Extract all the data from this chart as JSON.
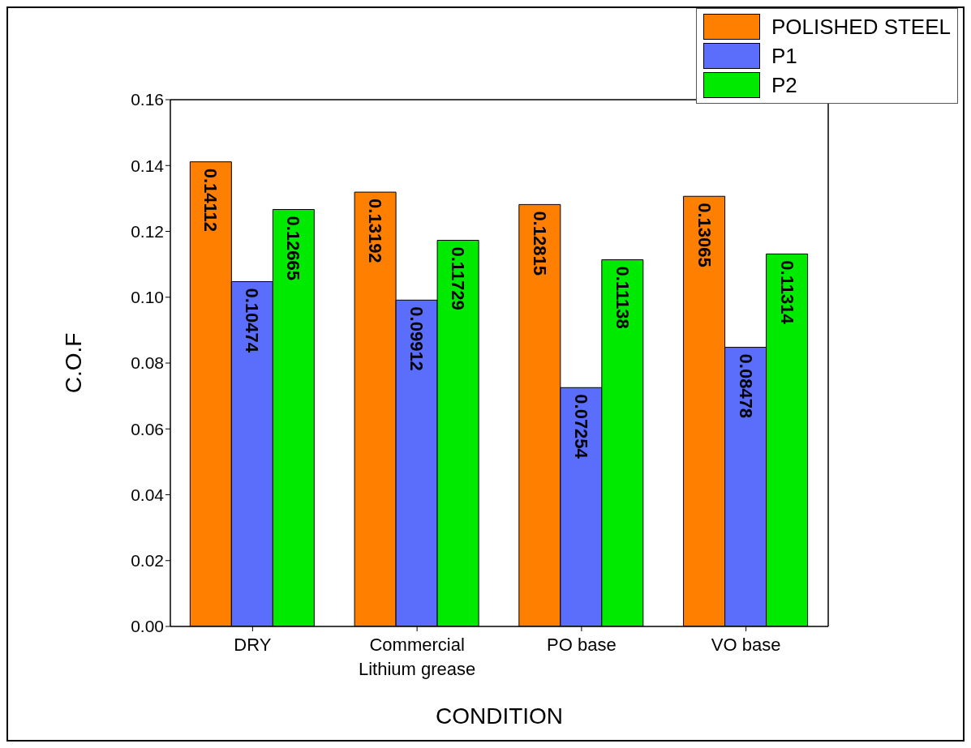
{
  "chart_data": {
    "type": "bar",
    "xlabel": "CONDITION",
    "ylabel": "C.O.F",
    "categories": [
      "DRY",
      "Commercial\nLithium grease",
      "PO base",
      "VO base"
    ],
    "series": [
      {
        "name": "POLISHED STEEL",
        "color": "#ff8000",
        "values": [
          0.14112,
          0.13192,
          0.12815,
          0.13065
        ]
      },
      {
        "name": "P1",
        "color": "#5a6dfb",
        "values": [
          0.10474,
          0.09912,
          0.07254,
          0.08478
        ]
      },
      {
        "name": "P2",
        "color": "#00ea00",
        "values": [
          0.12665,
          0.11729,
          0.11138,
          0.11314
        ]
      }
    ],
    "ylim": [
      0,
      0.16
    ],
    "yticks": [
      {
        "value": 0,
        "label": "0.00"
      },
      {
        "value": 0.02,
        "label": "0.02"
      },
      {
        "value": 0.04,
        "label": "0.04"
      },
      {
        "value": 0.06,
        "label": "0.06"
      },
      {
        "value": 0.08,
        "label": "0.08"
      },
      {
        "value": 0.1,
        "label": "0.10"
      },
      {
        "value": 0.12,
        "label": "0.12"
      },
      {
        "value": 0.14,
        "label": "0.14"
      },
      {
        "value": 0.16,
        "label": "0.16"
      }
    ],
    "data_labels": true,
    "grid": false,
    "legend": "top right"
  }
}
